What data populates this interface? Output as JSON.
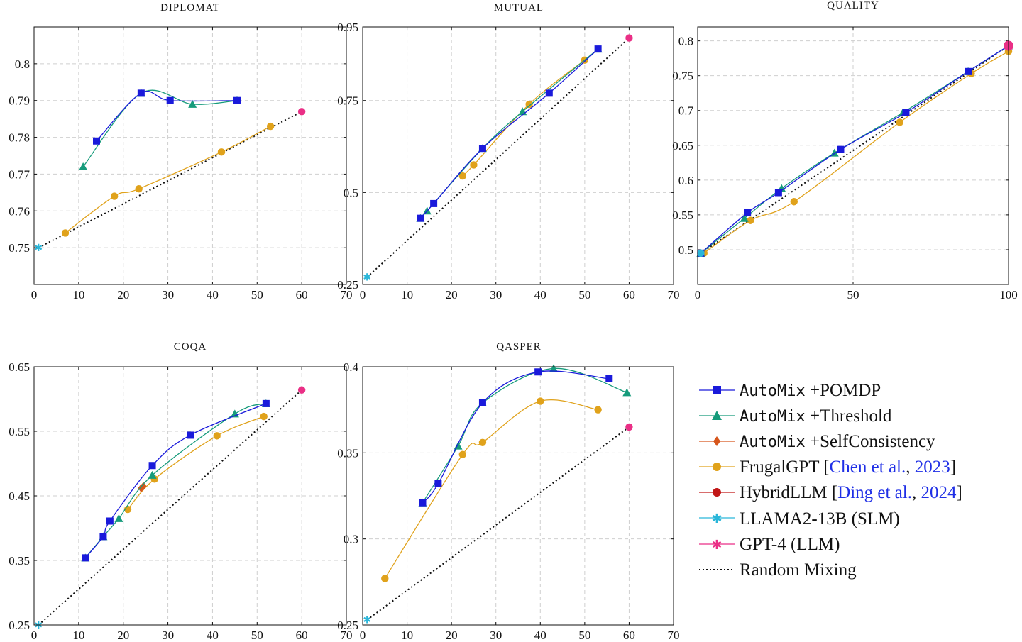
{
  "colors": {
    "pomdp": "#1a1adb",
    "threshold": "#169b7b",
    "selfconsistency": "#d6561c",
    "frugal": "#e0a21b",
    "hybrid": "#c11616",
    "slm": "#2ab6d9",
    "llm": "#ea2f86",
    "random": "#111111",
    "cite": "#1f2fe6"
  },
  "legend": [
    {
      "key": "pomdp",
      "mono": "AutoMix",
      "rest": " +POMDP",
      "marker": "square"
    },
    {
      "key": "threshold",
      "mono": "AutoMix",
      "rest": " +Threshold",
      "marker": "triangle"
    },
    {
      "key": "selfconsistency",
      "mono": "AutoMix",
      "rest": " +SelfConsistency",
      "marker": "diamond"
    },
    {
      "key": "frugal",
      "pre": "FrugalGPT [",
      "cite": "Chen et al.",
      "mid": ", ",
      "year": "2023",
      "post": "]",
      "marker": "circle"
    },
    {
      "key": "hybrid",
      "pre": "HybridLLM [",
      "cite": "Ding et al.",
      "mid": ", ",
      "year": "2024",
      "post": "]",
      "marker": "circle"
    },
    {
      "key": "slm",
      "text": "LLAMA2-13B (SLM)",
      "marker": "star"
    },
    {
      "key": "llm",
      "text": "GPT-4 (LLM)",
      "marker": "star"
    },
    {
      "key": "random",
      "text": "Random Mixing",
      "marker": "none"
    }
  ],
  "chart_data": [
    {
      "type": "line",
      "title": "DIPLOMAT",
      "xlim": [
        0,
        70
      ],
      "ylim": [
        0.74,
        0.81
      ],
      "xticks": [
        0,
        10,
        20,
        30,
        40,
        50,
        60,
        70
      ],
      "xtick_labels": [
        "0",
        "10",
        "20",
        "30",
        "40",
        "50",
        "60",
        "70"
      ],
      "yticks": [
        0.75,
        0.76,
        0.77,
        0.78,
        0.79,
        0.8
      ],
      "ytick_labels": [
        "0.75",
        "0.76",
        "0.77",
        "0.78",
        "0.79",
        "0.8"
      ],
      "series": [
        {
          "key": "pomdp",
          "x": [
            14,
            24,
            30.5,
            45.5
          ],
          "y": [
            0.779,
            0.792,
            0.79,
            0.79
          ]
        },
        {
          "key": "threshold",
          "x": [
            11,
            24,
            35.5,
            45.5
          ],
          "y": [
            0.772,
            0.792,
            0.789,
            0.79
          ]
        },
        {
          "key": "frugal",
          "x": [
            7,
            18,
            23.5,
            42,
            53
          ],
          "y": [
            0.754,
            0.764,
            0.766,
            0.776,
            0.783
          ]
        },
        {
          "key": "random",
          "x": [
            1,
            60
          ],
          "y": [
            0.75,
            0.787
          ]
        }
      ],
      "slm": [
        1,
        0.75
      ],
      "llm": [
        60,
        0.787
      ]
    },
    {
      "type": "line",
      "title": "MUTUAL",
      "xlim": [
        0,
        70
      ],
      "ylim": [
        0.25,
        0.95
      ],
      "xticks": [
        0,
        10,
        20,
        30,
        40,
        50,
        60,
        70
      ],
      "xtick_labels": [
        "0",
        "10",
        "20",
        "30",
        "40",
        "50",
        "60",
        "70"
      ],
      "yticks": [
        0.25,
        0.5,
        0.75,
        0.95
      ],
      "ytick_labels": [
        "0.25",
        "0.5",
        "0.75",
        "0.95"
      ],
      "series": [
        {
          "key": "pomdp",
          "x": [
            13,
            16,
            27,
            42,
            53
          ],
          "y": [
            0.43,
            0.47,
            0.62,
            0.77,
            0.89
          ]
        },
        {
          "key": "threshold",
          "x": [
            13,
            14.5,
            27,
            36,
            53
          ],
          "y": [
            0.43,
            0.45,
            0.62,
            0.72,
            0.89
          ]
        },
        {
          "key": "frugal",
          "x": [
            22.5,
            25,
            37.5,
            50
          ],
          "y": [
            0.545,
            0.575,
            0.74,
            0.86
          ]
        },
        {
          "key": "random",
          "x": [
            1,
            60
          ],
          "y": [
            0.27,
            0.92
          ]
        }
      ],
      "slm": [
        1,
        0.27
      ],
      "llm": [
        60,
        0.92
      ]
    },
    {
      "type": "line",
      "title": "QUALITY",
      "xlim": [
        0,
        100
      ],
      "ylim": [
        0.45,
        0.82
      ],
      "xticks": [
        0,
        50,
        100
      ],
      "xtick_labels": [
        "0",
        "50",
        "100"
      ],
      "yticks": [
        0.5,
        0.55,
        0.6,
        0.65,
        0.7,
        0.75,
        0.8
      ],
      "ytick_labels": [
        "0.5",
        "0.55",
        "0.6",
        "0.65",
        "0.7",
        "0.75",
        "0.8"
      ],
      "series": [
        {
          "key": "pomdp",
          "x": [
            1,
            16,
            26,
            46,
            67,
            87,
            100
          ],
          "y": [
            0.495,
            0.553,
            0.582,
            0.644,
            0.697,
            0.756,
            0.793
          ]
        },
        {
          "key": "threshold",
          "x": [
            1,
            15,
            27,
            44,
            66,
            87,
            100
          ],
          "y": [
            0.495,
            0.545,
            0.588,
            0.639,
            0.697,
            0.756,
            0.793
          ]
        },
        {
          "key": "frugal",
          "x": [
            2,
            17,
            31,
            65,
            88,
            100
          ],
          "y": [
            0.495,
            0.542,
            0.569,
            0.683,
            0.753,
            0.785
          ]
        },
        {
          "key": "random",
          "x": [
            1,
            100
          ],
          "y": [
            0.495,
            0.793
          ]
        }
      ],
      "slm": [
        1,
        0.495
      ],
      "llm": [
        100,
        0.793
      ]
    },
    {
      "type": "line",
      "title": "COQA",
      "xlim": [
        0,
        70
      ],
      "ylim": [
        0.25,
        0.65
      ],
      "xticks": [
        0,
        10,
        20,
        30,
        40,
        50,
        60,
        70
      ],
      "xtick_labels": [
        "0",
        "10",
        "20",
        "30",
        "40",
        "50",
        "60",
        "70"
      ],
      "yticks": [
        0.25,
        0.35,
        0.45,
        0.55,
        0.65
      ],
      "ytick_labels": [
        "0.25",
        "0.35",
        "0.45",
        "0.55",
        "0.65"
      ],
      "series": [
        {
          "key": "pomdp",
          "x": [
            11.5,
            15.5,
            17,
            26.5,
            35,
            52
          ],
          "y": [
            0.354,
            0.387,
            0.411,
            0.497,
            0.544,
            0.593
          ]
        },
        {
          "key": "threshold",
          "x": [
            11.5,
            15.5,
            19,
            26.5,
            45,
            52
          ],
          "y": [
            0.354,
            0.387,
            0.415,
            0.482,
            0.577,
            0.593
          ]
        },
        {
          "key": "selfconsistency",
          "x": [
            24,
            24.5
          ],
          "y": [
            0.462,
            0.465
          ]
        },
        {
          "key": "frugal",
          "x": [
            21,
            27,
            41,
            51.5
          ],
          "y": [
            0.429,
            0.476,
            0.543,
            0.573
          ]
        },
        {
          "key": "random",
          "x": [
            1,
            60
          ],
          "y": [
            0.25,
            0.614
          ]
        }
      ],
      "slm": [
        1,
        0.25
      ],
      "llm": [
        60,
        0.614
      ]
    },
    {
      "type": "line",
      "title": "QASPER",
      "xlim": [
        0,
        70
      ],
      "ylim": [
        0.25,
        0.4
      ],
      "xticks": [
        0,
        10,
        20,
        30,
        40,
        50,
        60,
        70
      ],
      "xtick_labels": [
        "0",
        "10",
        "20",
        "30",
        "40",
        "50",
        "60",
        "70"
      ],
      "yticks": [
        0.25,
        0.3,
        0.35,
        0.4
      ],
      "ytick_labels": [
        "0.25",
        "0.3",
        "0.35",
        "0.4"
      ],
      "series": [
        {
          "key": "pomdp",
          "x": [
            13.5,
            17,
            27,
            39.5,
            55.5
          ],
          "y": [
            0.321,
            0.332,
            0.379,
            0.397,
            0.393
          ]
        },
        {
          "key": "threshold",
          "x": [
            13.5,
            21.5,
            27,
            43,
            59.5
          ],
          "y": [
            0.321,
            0.354,
            0.379,
            0.399,
            0.385
          ]
        },
        {
          "key": "frugal",
          "x": [
            5,
            22.5,
            27,
            40,
            53
          ],
          "y": [
            0.277,
            0.349,
            0.356,
            0.38,
            0.375
          ]
        },
        {
          "key": "random",
          "x": [
            1,
            60
          ],
          "y": [
            0.253,
            0.365
          ]
        }
      ],
      "slm": [
        1,
        0.253
      ],
      "llm": [
        60,
        0.365
      ]
    }
  ]
}
